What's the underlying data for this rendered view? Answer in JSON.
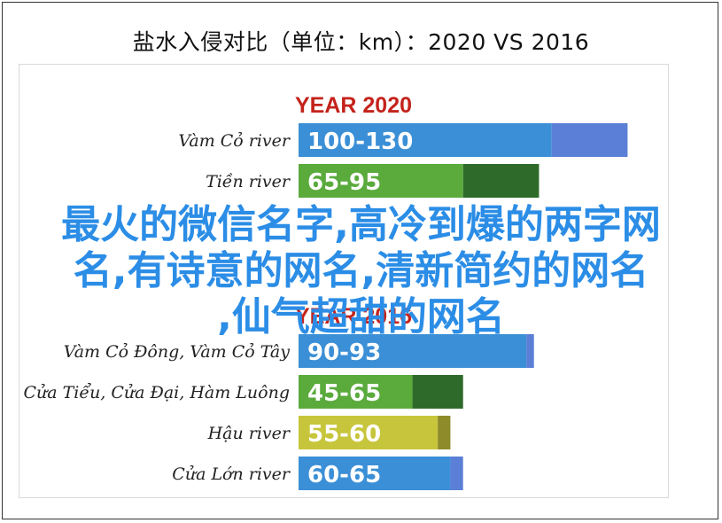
{
  "title": "盐水入侵对比（单位：km）：2020 VS 2016",
  "overlay_lines": [
    "最火的微信名字,高冷到爆的两字网",
    "名,有诗意的网名,清新简约的网名",
    ",仙气超甜的网名"
  ],
  "chart_data": [
    {
      "type": "bar",
      "orientation": "horizontal",
      "title": "YEAR 2020",
      "xlim": [
        0,
        140
      ],
      "categories": [
        "Vàm Cỏ river",
        "Tiền river",
        "",
        ""
      ],
      "ranges": [
        [
          100,
          130
        ],
        [
          65,
          95
        ],
        [
          null,
          null
        ],
        [
          null,
          null
        ]
      ],
      "range_labels": [
        "100-130",
        "65-95",
        "",
        ""
      ],
      "colors": [
        "#3b8fd6",
        "#5aaa3c",
        "#c7c53b",
        "#3b8fd6"
      ]
    },
    {
      "type": "bar",
      "orientation": "horizontal",
      "title": "YEAR 2016",
      "xlim": [
        0,
        140
      ],
      "categories": [
        "Vàm Cỏ Đông, Vàm Cỏ Tây",
        "Cửa Tiểu, Cửa Đại, Hàm Luông",
        "Hậu river",
        "Cửa Lớn river"
      ],
      "ranges": [
        [
          90,
          93
        ],
        [
          45,
          65
        ],
        [
          55,
          60
        ],
        [
          60,
          65
        ]
      ],
      "range_labels": [
        "90-93",
        "45-65",
        "55-60",
        "60-65"
      ],
      "colors": [
        "#3b8fd6",
        "#5aaa3c",
        "#c7c53b",
        "#3b8fd6"
      ]
    }
  ]
}
